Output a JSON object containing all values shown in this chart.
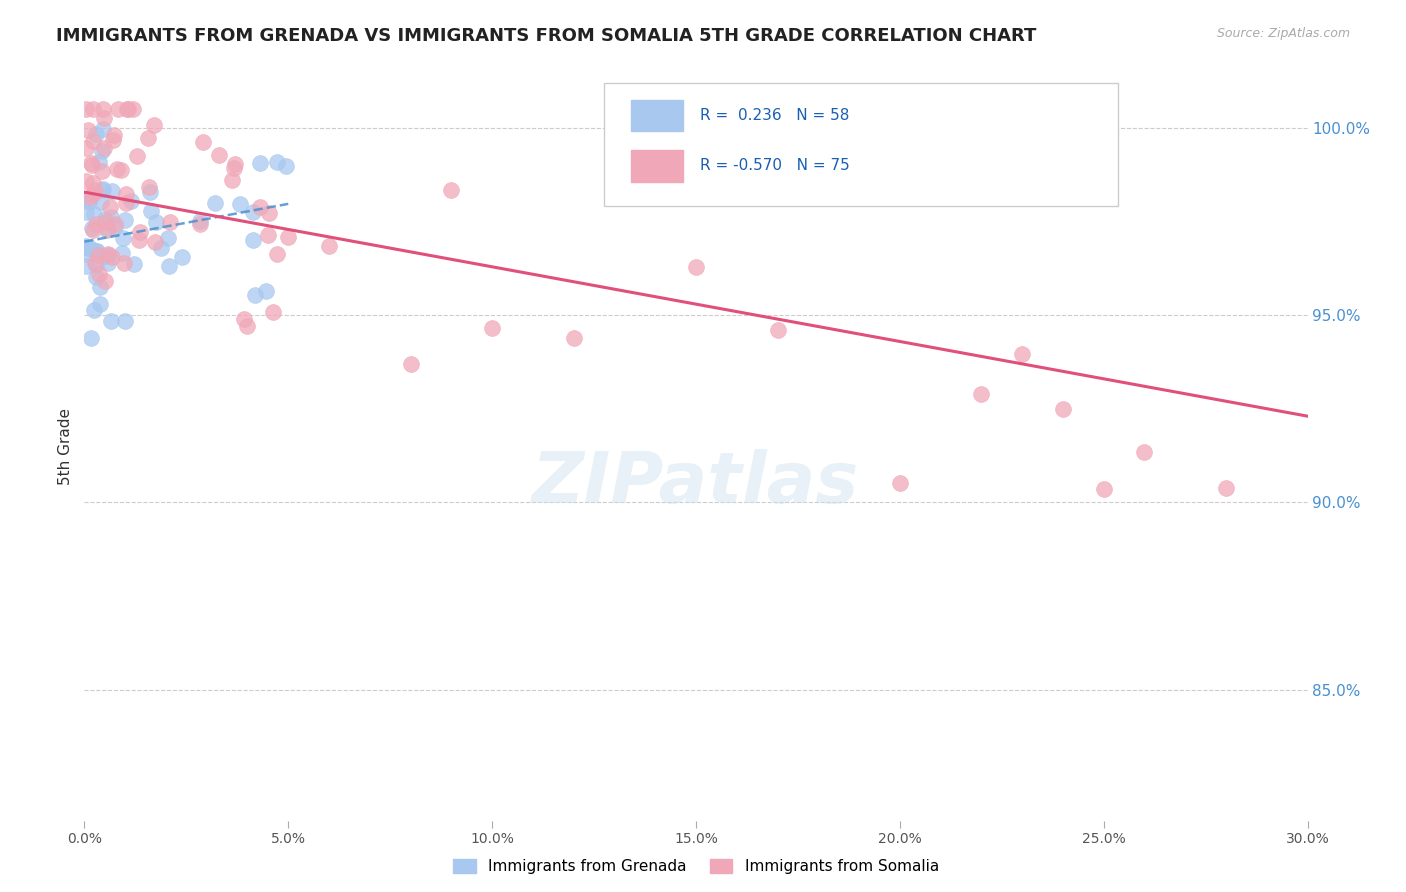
{
  "title": "IMMIGRANTS FROM GRENADA VS IMMIGRANTS FROM SOMALIA 5TH GRADE CORRELATION CHART",
  "source": "Source: ZipAtlas.com",
  "ylabel": "5th Grade",
  "ytick_values": [
    1.0,
    0.95,
    0.9,
    0.85
  ],
  "xmin": 0.0,
  "xmax": 0.3,
  "ymin": 0.815,
  "ymax": 1.015,
  "grenada_R": 0.236,
  "grenada_N": 58,
  "somalia_R": -0.57,
  "somalia_N": 75,
  "grenada_color": "#a8c8f0",
  "somalia_color": "#f0a8b8",
  "grenada_line_color": "#4a90d0",
  "somalia_line_color": "#e0507a",
  "watermark": "ZIPatlas",
  "background_color": "#ffffff"
}
